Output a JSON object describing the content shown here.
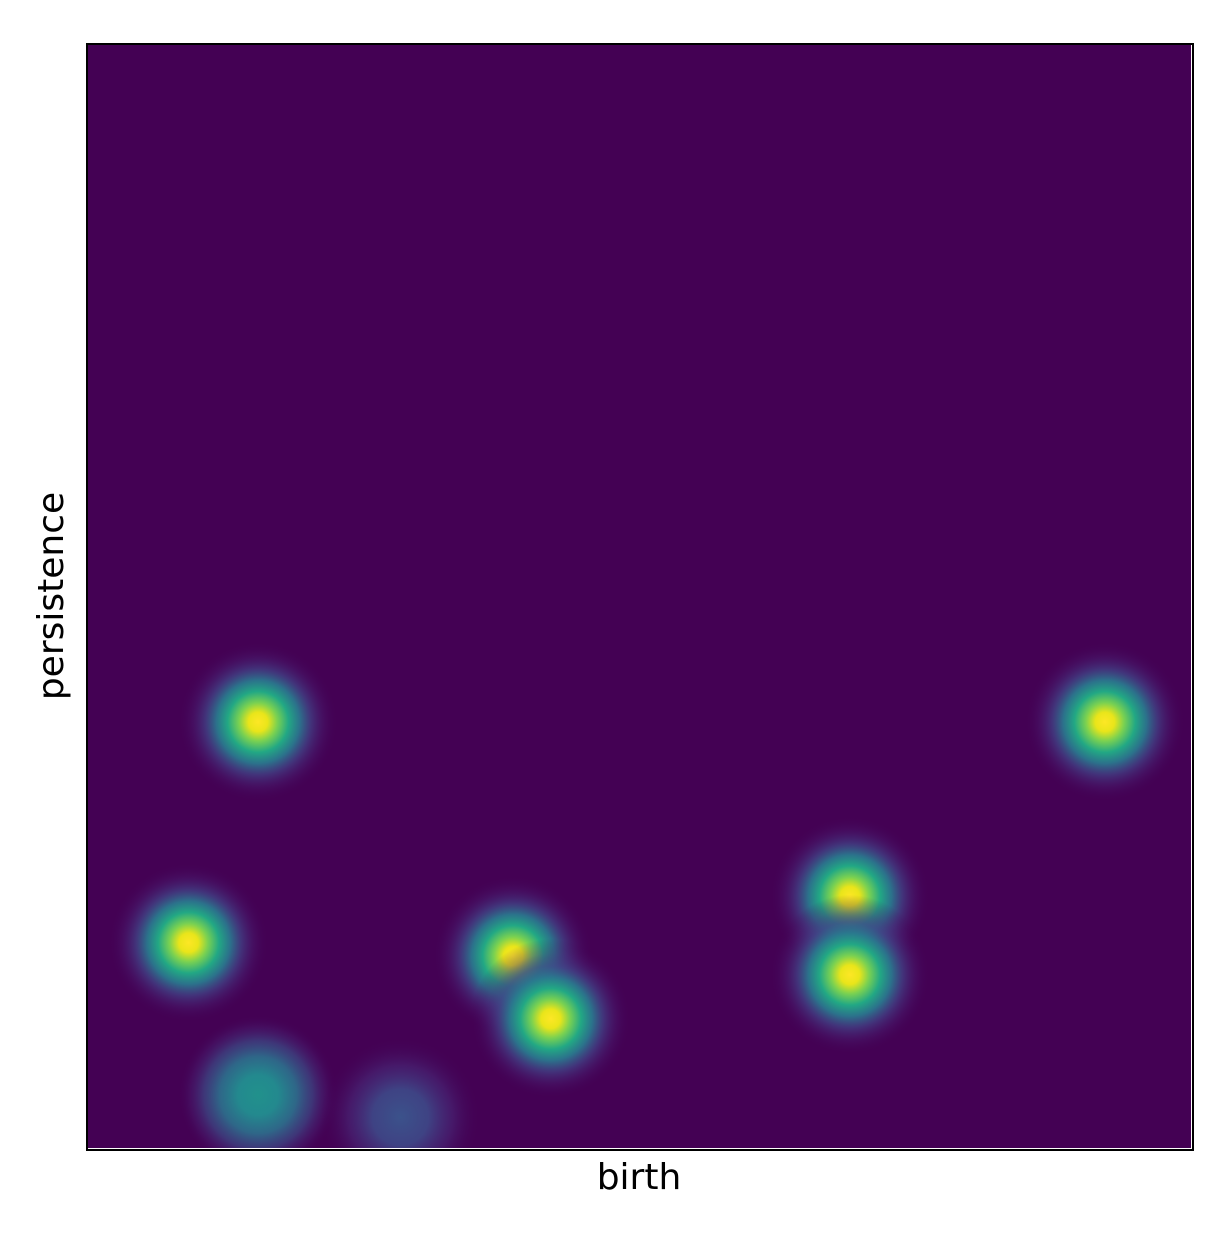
{
  "chart_data": {
    "type": "heatmap",
    "title": "",
    "xlabel": "birth",
    "ylabel": "persistence",
    "xlim": [
      0,
      1
    ],
    "ylim": [
      0,
      1
    ],
    "xticks": [],
    "yticks": [],
    "grid": false,
    "legend": "none",
    "colormap": "viridis",
    "background_color": "#440154",
    "peaks": [
      {
        "x": 0.155,
        "y": 0.386,
        "intensity": 1.0
      },
      {
        "x": 0.922,
        "y": 0.386,
        "intensity": 1.0
      },
      {
        "x": 0.092,
        "y": 0.186,
        "intensity": 1.0
      },
      {
        "x": 0.386,
        "y": 0.174,
        "intensity": 1.0
      },
      {
        "x": 0.42,
        "y": 0.117,
        "intensity": 1.0
      },
      {
        "x": 0.691,
        "y": 0.228,
        "intensity": 1.0
      },
      {
        "x": 0.691,
        "y": 0.157,
        "intensity": 1.0
      },
      {
        "x": 0.155,
        "y": 0.048,
        "intensity": 0.6
      },
      {
        "x": 0.284,
        "y": 0.028,
        "intensity": 0.35
      }
    ]
  }
}
